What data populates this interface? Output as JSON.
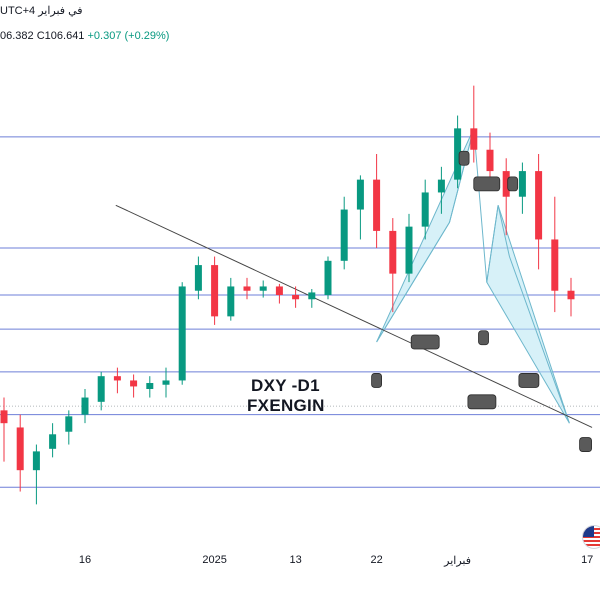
{
  "header": {
    "top_text": "UTC+4 في فبراير",
    "ohlc_low": "06.382",
    "ohlc_close": "C106.641",
    "ohlc_change": "+0.307 (+0.29%)"
  },
  "overlay": {
    "symbol": "DXY -D1",
    "brand": "FXENGIN"
  },
  "x_axis": {
    "ticks": [
      {
        "label": "16",
        "index": 5
      },
      {
        "label": "2025",
        "index": 13
      },
      {
        "label": "13",
        "index": 18
      },
      {
        "label": "22",
        "index": 23
      },
      {
        "label": "فبراير",
        "index": 28
      },
      {
        "label": "17",
        "index": 36
      }
    ]
  },
  "flag_icon": "us-flag-icon",
  "colors": {
    "up": "#089981",
    "down": "#f23645",
    "level_line": "#6e7fd8",
    "trend_line": "#444444",
    "pattern_fill": "#b7e6f3",
    "pattern_line": "#6db7cc",
    "marker": "#5a5a5a"
  },
  "chart_data": {
    "type": "candlestick",
    "title": "DXY -D1",
    "y_range": [
      105.0,
      110.5
    ],
    "horizontal_levels": [
      109.6,
      108.3,
      107.75,
      107.35,
      106.85,
      106.35,
      105.5
    ],
    "candles": [
      {
        "o": 106.4,
        "h": 106.55,
        "l": 105.8,
        "c": 106.25
      },
      {
        "o": 106.2,
        "h": 106.35,
        "l": 105.45,
        "c": 105.7
      },
      {
        "o": 105.7,
        "h": 106.0,
        "l": 105.3,
        "c": 105.92
      },
      {
        "o": 105.95,
        "h": 106.25,
        "l": 105.85,
        "c": 106.12
      },
      {
        "o": 106.15,
        "h": 106.4,
        "l": 106.0,
        "c": 106.33
      },
      {
        "o": 106.35,
        "h": 106.65,
        "l": 106.25,
        "c": 106.55
      },
      {
        "o": 106.5,
        "h": 106.85,
        "l": 106.4,
        "c": 106.8
      },
      {
        "o": 106.8,
        "h": 106.9,
        "l": 106.6,
        "c": 106.75
      },
      {
        "o": 106.75,
        "h": 106.82,
        "l": 106.55,
        "c": 106.68
      },
      {
        "o": 106.65,
        "h": 106.8,
        "l": 106.55,
        "c": 106.72
      },
      {
        "o": 106.7,
        "h": 106.9,
        "l": 106.55,
        "c": 106.75
      },
      {
        "o": 106.75,
        "h": 107.9,
        "l": 106.7,
        "c": 107.85
      },
      {
        "o": 107.8,
        "h": 108.2,
        "l": 107.7,
        "c": 108.1
      },
      {
        "o": 108.1,
        "h": 108.2,
        "l": 107.4,
        "c": 107.5
      },
      {
        "o": 107.5,
        "h": 107.95,
        "l": 107.45,
        "c": 107.85
      },
      {
        "o": 107.85,
        "h": 107.95,
        "l": 107.7,
        "c": 107.8
      },
      {
        "o": 107.8,
        "h": 107.92,
        "l": 107.72,
        "c": 107.85
      },
      {
        "o": 107.85,
        "h": 107.88,
        "l": 107.65,
        "c": 107.75
      },
      {
        "o": 107.75,
        "h": 107.85,
        "l": 107.6,
        "c": 107.7
      },
      {
        "o": 107.7,
        "h": 107.82,
        "l": 107.6,
        "c": 107.78
      },
      {
        "o": 107.75,
        "h": 108.2,
        "l": 107.7,
        "c": 108.15
      },
      {
        "o": 108.15,
        "h": 108.9,
        "l": 108.05,
        "c": 108.75
      },
      {
        "o": 108.75,
        "h": 109.15,
        "l": 108.4,
        "c": 109.1
      },
      {
        "o": 109.1,
        "h": 109.4,
        "l": 108.3,
        "c": 108.5
      },
      {
        "o": 108.5,
        "h": 108.65,
        "l": 107.55,
        "c": 108.0
      },
      {
        "o": 108.0,
        "h": 108.7,
        "l": 107.9,
        "c": 108.55
      },
      {
        "o": 108.55,
        "h": 109.1,
        "l": 108.4,
        "c": 108.95
      },
      {
        "o": 108.95,
        "h": 109.25,
        "l": 108.7,
        "c": 109.1
      },
      {
        "o": 109.1,
        "h": 109.85,
        "l": 109.0,
        "c": 109.7
      },
      {
        "o": 109.7,
        "h": 110.2,
        "l": 109.3,
        "c": 109.45
      },
      {
        "o": 109.45,
        "h": 109.65,
        "l": 109.0,
        "c": 109.2
      },
      {
        "o": 109.2,
        "h": 109.35,
        "l": 108.45,
        "c": 108.9
      },
      {
        "o": 108.9,
        "h": 109.3,
        "l": 108.7,
        "c": 109.2
      },
      {
        "o": 109.2,
        "h": 109.4,
        "l": 108.05,
        "c": 108.4
      },
      {
        "o": 108.4,
        "h": 108.9,
        "l": 107.55,
        "c": 107.8
      },
      {
        "o": 107.8,
        "h": 107.95,
        "l": 107.5,
        "c": 107.7
      }
    ]
  }
}
